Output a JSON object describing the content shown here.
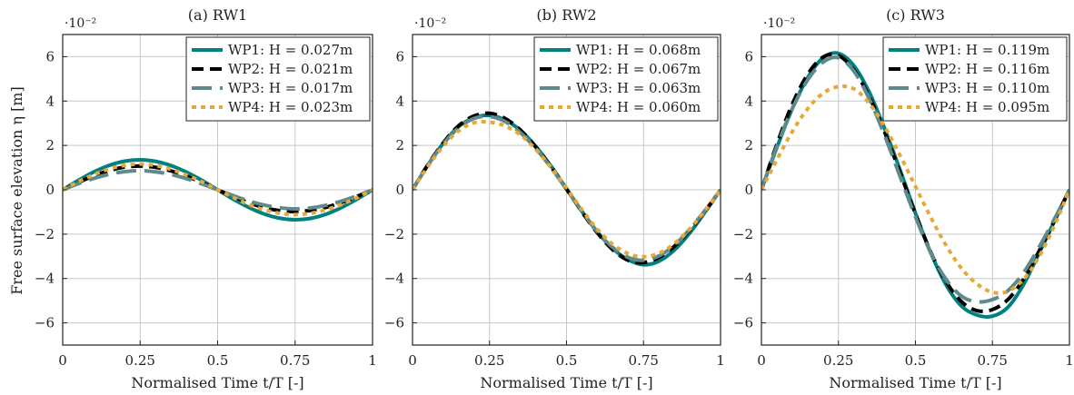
{
  "figure": {
    "ylabel": "Free surface elevation η [m]",
    "xlabel": "Normalised Time t/T [-]",
    "y_exponent": "·10⁻²"
  },
  "chart_data": [
    {
      "type": "line",
      "title": "(a) RW1",
      "xlabel": "Normalised Time t/T [-]",
      "ylabel": "Free surface elevation η [m]",
      "xlim": [
        0,
        1
      ],
      "ylim": [
        -0.07,
        0.07
      ],
      "y_scale_label": "·10⁻²",
      "xticks": [
        0,
        0.25,
        0.5,
        0.75,
        1
      ],
      "xtick_labels": [
        "0",
        "0.25",
        "0.5",
        "0.75",
        "1"
      ],
      "yticks": [
        -0.06,
        -0.04,
        -0.02,
        0,
        0.02,
        0.04,
        0.06
      ],
      "ytick_labels": [
        "−6",
        "−4",
        "−2",
        "0",
        "2",
        "4",
        "6"
      ],
      "grid": true,
      "legend_position": "top-right",
      "x": [
        0,
        0.05,
        0.1,
        0.15,
        0.2,
        0.25,
        0.3,
        0.35,
        0.4,
        0.45,
        0.5,
        0.55,
        0.6,
        0.65,
        0.7,
        0.75,
        0.8,
        0.85,
        0.9,
        0.95,
        1
      ],
      "series": [
        {
          "name": "WP1:  H = 0.027m",
          "color": "#008080",
          "style": "solid",
          "values": [
            0,
            0.0042,
            0.008,
            0.011,
            0.0129,
            0.0135,
            0.0128,
            0.0109,
            0.0079,
            0.0042,
            0,
            -0.0042,
            -0.0079,
            -0.0109,
            -0.0128,
            -0.0135,
            -0.0129,
            -0.011,
            -0.008,
            -0.0042,
            0
          ]
        },
        {
          "name": "WP2:  H = 0.021m",
          "color": "#000000",
          "style": "dashed",
          "values": [
            0,
            0.0033,
            0.0063,
            0.0087,
            0.0102,
            0.0107,
            0.0101,
            0.0085,
            0.0061,
            0.0032,
            0,
            -0.003,
            -0.0058,
            -0.008,
            -0.0094,
            -0.0098,
            -0.0093,
            -0.0079,
            -0.0057,
            -0.003,
            0
          ]
        },
        {
          "name": "WP3:  H = 0.017m",
          "color": "#5f8a8b",
          "style": "longdash",
          "values": [
            0,
            0.0027,
            0.0051,
            0.007,
            0.0082,
            0.0086,
            0.0081,
            0.0069,
            0.005,
            0.0026,
            0,
            -0.0026,
            -0.005,
            -0.0069,
            -0.0081,
            -0.0086,
            -0.0082,
            -0.007,
            -0.0051,
            -0.0027,
            0
          ]
        },
        {
          "name": "WP4:  H = 0.023m",
          "color": "#e8a838",
          "style": "dotted",
          "values": [
            0,
            0.0036,
            0.0068,
            0.0094,
            0.011,
            0.0116,
            0.0109,
            0.0092,
            0.0066,
            0.0035,
            0,
            -0.0034,
            -0.0066,
            -0.009,
            -0.0106,
            -0.0112,
            -0.0106,
            -0.009,
            -0.0066,
            -0.0035,
            0
          ]
        }
      ]
    },
    {
      "type": "line",
      "title": "(b) RW2",
      "xlabel": "Normalised Time t/T [-]",
      "ylabel": "Free surface elevation η [m]",
      "xlim": [
        0,
        1
      ],
      "ylim": [
        -0.07,
        0.07
      ],
      "y_scale_label": "·10⁻²",
      "xticks": [
        0,
        0.25,
        0.5,
        0.75,
        1
      ],
      "xtick_labels": [
        "0",
        "0.25",
        "0.5",
        "0.75",
        "1"
      ],
      "yticks": [
        -0.06,
        -0.04,
        -0.02,
        0,
        0.02,
        0.04,
        0.06
      ],
      "ytick_labels": [
        "−6",
        "−4",
        "−2",
        "0",
        "2",
        "4",
        "6"
      ],
      "grid": true,
      "legend_position": "top-right",
      "x": [
        0,
        0.05,
        0.1,
        0.15,
        0.2,
        0.25,
        0.3,
        0.35,
        0.4,
        0.45,
        0.5,
        0.55,
        0.6,
        0.65,
        0.7,
        0.75,
        0.8,
        0.85,
        0.9,
        0.95,
        1
      ],
      "series": [
        {
          "name": "WP1:  H = 0.068m",
          "color": "#008080",
          "style": "solid",
          "values": [
            0,
            0.0112,
            0.021,
            0.0285,
            0.0325,
            0.0335,
            0.0315,
            0.0268,
            0.0196,
            0.0106,
            0.0005,
            -0.0097,
            -0.019,
            -0.0265,
            -0.0315,
            -0.0338,
            -0.0322,
            -0.0272,
            -0.0195,
            -0.01,
            0
          ]
        },
        {
          "name": "WP2:  H = 0.067m",
          "color": "#000000",
          "style": "dashed",
          "values": [
            0,
            0.0113,
            0.0212,
            0.0289,
            0.0333,
            0.0345,
            0.0322,
            0.027,
            0.0193,
            0.0102,
            0.0003,
            -0.01,
            -0.0194,
            -0.027,
            -0.0318,
            -0.0328,
            -0.0305,
            -0.0255,
            -0.0182,
            -0.0095,
            0
          ]
        },
        {
          "name": "WP3:  H = 0.063m",
          "color": "#5f8a8b",
          "style": "longdash",
          "values": [
            0,
            0.011,
            0.0207,
            0.028,
            0.0322,
            0.033,
            0.0308,
            0.0258,
            0.0186,
            0.0099,
            0.0002,
            -0.0097,
            -0.0189,
            -0.026,
            -0.0305,
            -0.0318,
            -0.0298,
            -0.025,
            -0.0178,
            -0.0092,
            0
          ]
        },
        {
          "name": "WP4:  H = 0.060m",
          "color": "#e8a838",
          "style": "dotted",
          "values": [
            0,
            0.0105,
            0.0197,
            0.0266,
            0.0302,
            0.0305,
            0.0288,
            0.0248,
            0.0182,
            0.01,
            0.0008,
            -0.009,
            -0.0178,
            -0.0246,
            -0.0288,
            -0.0302,
            -0.0286,
            -0.0243,
            -0.0176,
            -0.0093,
            0
          ]
        }
      ]
    },
    {
      "type": "line",
      "title": "(c) RW3",
      "xlabel": "Normalised Time t/T [-]",
      "ylabel": "Free surface elevation η [m]",
      "xlim": [
        0,
        1
      ],
      "ylim": [
        -0.07,
        0.07
      ],
      "y_scale_label": "·10⁻²",
      "xticks": [
        0,
        0.25,
        0.5,
        0.75,
        1
      ],
      "xtick_labels": [
        "0",
        "0.25",
        "0.5",
        "0.75",
        "1"
      ],
      "yticks": [
        -0.06,
        -0.04,
        -0.02,
        0,
        0.02,
        0.04,
        0.06
      ],
      "ytick_labels": [
        "−6",
        "−4",
        "−2",
        "0",
        "2",
        "4",
        "6"
      ],
      "grid": true,
      "legend_position": "top-right",
      "x": [
        0,
        0.05,
        0.1,
        0.15,
        0.2,
        0.25,
        0.3,
        0.35,
        0.4,
        0.45,
        0.5,
        0.55,
        0.6,
        0.65,
        0.7,
        0.75,
        0.8,
        0.85,
        0.9,
        0.95,
        1
      ],
      "series": [
        {
          "name": "WP1:  H = 0.119m",
          "color": "#008080",
          "style": "solid",
          "values": [
            0,
            0.019,
            0.0365,
            0.0505,
            0.0595,
            0.0615,
            0.056,
            0.044,
            0.0275,
            0.009,
            -0.0105,
            -0.0285,
            -0.043,
            -0.0525,
            -0.0565,
            -0.057,
            -0.053,
            -0.043,
            -0.029,
            -0.0145,
            0
          ]
        },
        {
          "name": "WP2:  H = 0.116m",
          "color": "#000000",
          "style": "dashed",
          "values": [
            0,
            0.0205,
            0.0385,
            0.052,
            0.0598,
            0.0605,
            0.054,
            0.042,
            0.026,
            0.0078,
            -0.0108,
            -0.0282,
            -0.0415,
            -0.0505,
            -0.0545,
            -0.054,
            -0.0495,
            -0.0405,
            -0.028,
            -0.0143,
            0
          ]
        },
        {
          "name": "WP3:  H = 0.110m",
          "color": "#5f8a8b",
          "style": "longdash",
          "values": [
            0,
            0.0195,
            0.0365,
            0.0495,
            0.0575,
            0.0595,
            0.0535,
            0.041,
            0.0245,
            0.006,
            -0.0122,
            -0.0285,
            -0.0405,
            -0.048,
            -0.0505,
            -0.0495,
            -0.0455,
            -0.0375,
            -0.0262,
            -0.0135,
            0
          ]
        },
        {
          "name": "WP4:  H = 0.095m",
          "color": "#e8a838",
          "style": "dotted",
          "values": [
            0,
            0.0135,
            0.0262,
            0.0365,
            0.0435,
            0.0465,
            0.0455,
            0.039,
            0.0285,
            0.0155,
            0.0015,
            -0.0125,
            -0.0252,
            -0.0355,
            -0.0425,
            -0.0462,
            -0.0458,
            -0.0405,
            -0.0305,
            -0.0165,
            0
          ]
        }
      ]
    }
  ]
}
